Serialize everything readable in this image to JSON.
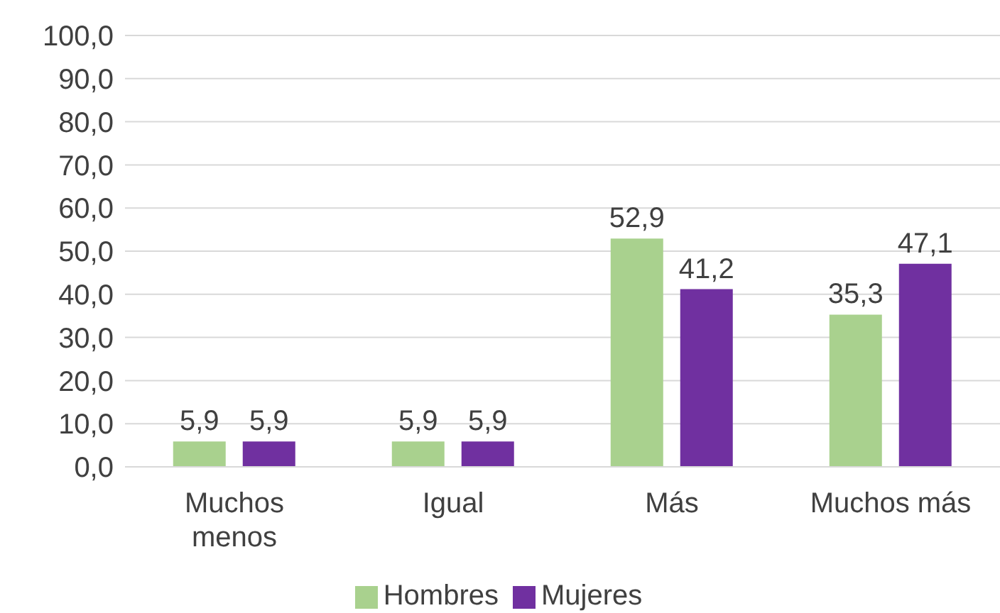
{
  "chart_data": {
    "type": "bar",
    "categories": [
      "Muchos menos",
      "Igual",
      "Más",
      "Muchos más"
    ],
    "series": [
      {
        "name": "Hombres",
        "color": "#a9d18e",
        "values": [
          5.9,
          5.9,
          52.9,
          35.3
        ],
        "value_labels": [
          "5,9",
          "5,9",
          "52,9",
          "35,3"
        ]
      },
      {
        "name": "Mujeres",
        "color": "#7030a0",
        "values": [
          5.9,
          5.9,
          41.2,
          47.1
        ],
        "value_labels": [
          "5,9",
          "5,9",
          "41,2",
          "47,1"
        ]
      }
    ],
    "ylim": [
      0,
      100
    ],
    "yticks": [
      {
        "value": 0,
        "label": "0,0"
      },
      {
        "value": 10,
        "label": "10,0"
      },
      {
        "value": 20,
        "label": "20,0"
      },
      {
        "value": 30,
        "label": "30,0"
      },
      {
        "value": 40,
        "label": "40,0"
      },
      {
        "value": 50,
        "label": "50,0"
      },
      {
        "value": 60,
        "label": "60,0"
      },
      {
        "value": 70,
        "label": "70,0"
      },
      {
        "value": 80,
        "label": "80,0"
      },
      {
        "value": 90,
        "label": "90,0"
      },
      {
        "value": 100,
        "label": "100,0"
      }
    ],
    "grid": "y",
    "legend": "bottom"
  }
}
